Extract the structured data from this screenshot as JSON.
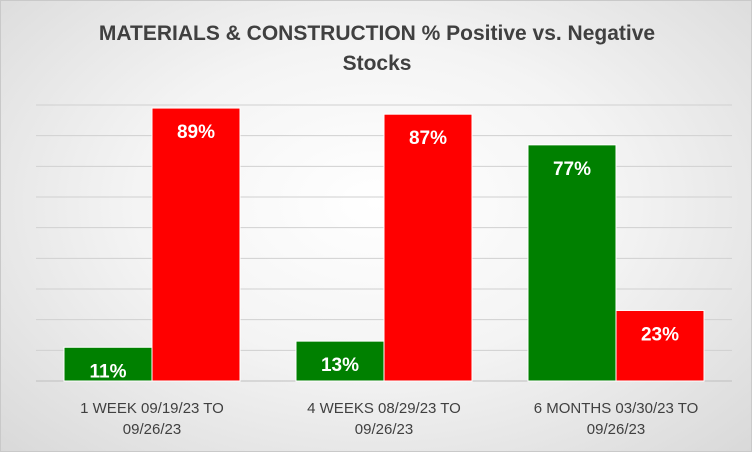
{
  "chart_data": {
    "type": "bar",
    "title_lines": [
      "MATERIALS & CONSTRUCTION % Positive vs. Negative",
      "Stocks"
    ],
    "categories": [
      [
        "1 WEEK 09/19/23 TO",
        "09/26/23"
      ],
      [
        "4 WEEKS 08/29/23 TO",
        "09/26/23"
      ],
      [
        "6 MONTHS 03/30/23 TO",
        "09/26/23"
      ]
    ],
    "series": [
      {
        "values": [
          11,
          13,
          77
        ],
        "labels": [
          "11%",
          "13%",
          "77%"
        ],
        "color": "#008000"
      },
      {
        "values": [
          89,
          87,
          23
        ],
        "labels": [
          "89%",
          "87%",
          "23%"
        ],
        "color": "#ff0000"
      }
    ],
    "ylim": [
      0,
      90
    ],
    "grid": true,
    "legend": "none"
  }
}
